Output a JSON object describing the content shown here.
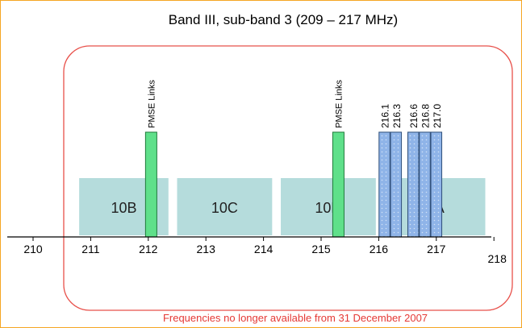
{
  "title": "Band III, sub-band 3 (209 – 217 MHz)",
  "footnote": "Frequencies no longer available from 31 December 2007",
  "colors": {
    "frame": "#f5a623",
    "rounded_region": "#e8504a",
    "block_fill": "#b5dcdc",
    "pmse_fill": "#5fe08a",
    "pmse_stroke": "#1f7a3a",
    "channel_fill": "#8fb4e8",
    "channel_stroke": "#2f4f7a",
    "footnote": "#e53935"
  },
  "axis": {
    "min": 210,
    "max": 218,
    "ticks": [
      "210",
      "211",
      "212",
      "213",
      "214",
      "215",
      "216",
      "217",
      "218"
    ]
  },
  "blocks": [
    {
      "label": "10B",
      "start": 210.8,
      "end": 212.35
    },
    {
      "label": "10C",
      "start": 212.5,
      "end": 214.15
    },
    {
      "label": "10D",
      "start": 214.3,
      "end": 215.95
    },
    {
      "label": "11A",
      "start": 216.0,
      "end": 217.85
    }
  ],
  "pmse_links": [
    {
      "label": "PMSE Links",
      "center": 212.05
    },
    {
      "label": "PMSE Links",
      "center": 215.3
    }
  ],
  "channels": [
    {
      "label": "216.1",
      "center": 216.1
    },
    {
      "label": "216.3",
      "center": 216.3
    },
    {
      "label": "216.6",
      "center": 216.6
    },
    {
      "label": "216.8",
      "center": 216.8
    },
    {
      "label": "217.0",
      "center": 217.0
    }
  ]
}
